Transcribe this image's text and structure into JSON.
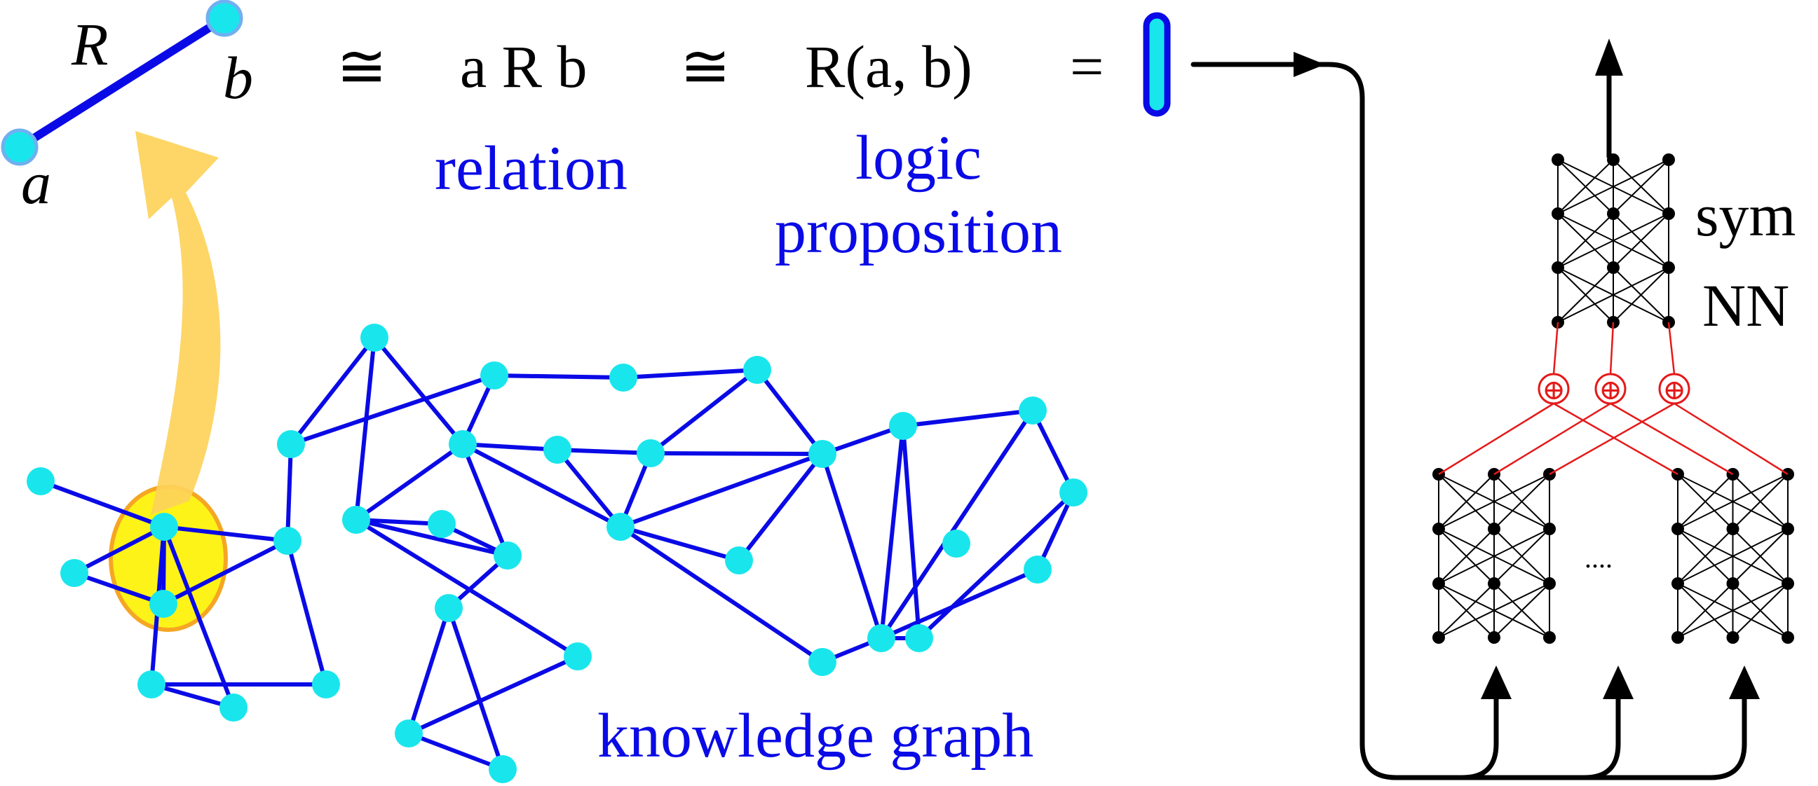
{
  "relation_symbol": {
    "edge_label": "R",
    "node_a_label": "a",
    "node_b_label": "b"
  },
  "equation": {
    "congruent_1": "≅",
    "infix_form": "a R b",
    "congruent_2": "≅",
    "function_form": "R(a, b)",
    "equals": "="
  },
  "captions": {
    "relation": "relation",
    "logic_line1": "logic",
    "logic_line2": "proposition",
    "knowledge_graph": "knowledge graph"
  },
  "network": {
    "label_line1": "sym",
    "label_line2": "NN",
    "ellipsis": "....",
    "combine_symbol": "⊕"
  },
  "colors": {
    "graph_edge": "#0a0ae6",
    "graph_node": "#19e6ec",
    "highlight_fill": "#fdf318",
    "highlight_stroke": "#f5a623",
    "arrow_fill": "#fdd35a",
    "nn_line": "#000000",
    "combine_line": "#e51a1a"
  }
}
